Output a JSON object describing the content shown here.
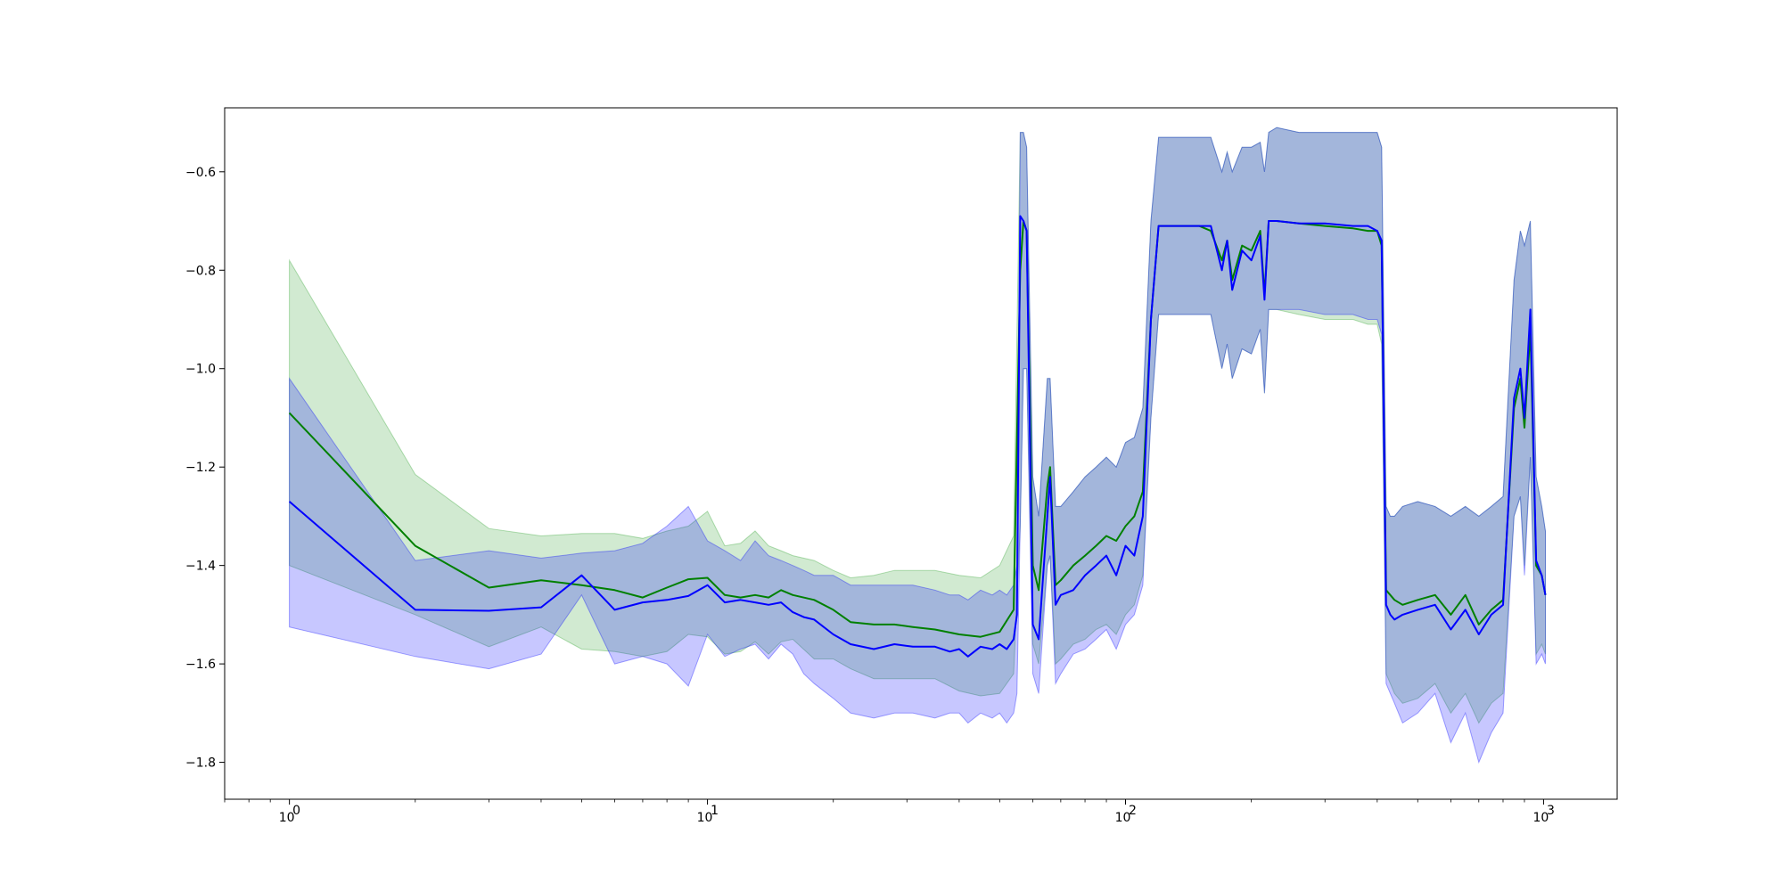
{
  "chart_data": {
    "type": "line",
    "title": "",
    "xlabel": "",
    "ylabel": "",
    "x_scale": "log",
    "xlim": [
      0.7,
      1500
    ],
    "ylim": [
      -1.875,
      -0.47
    ],
    "grid": false,
    "legend": "none",
    "x_ticks": [
      {
        "value": 1,
        "label": "10",
        "exp": "0"
      },
      {
        "value": 10,
        "label": "10",
        "exp": "1"
      },
      {
        "value": 100,
        "label": "10",
        "exp": "2"
      },
      {
        "value": 1000,
        "label": "10",
        "exp": "3"
      }
    ],
    "y_ticks": [
      {
        "value": -1.8,
        "label": "−1.8"
      },
      {
        "value": -1.6,
        "label": "−1.6"
      },
      {
        "value": -1.4,
        "label": "−1.4"
      },
      {
        "value": -1.2,
        "label": "−1.2"
      },
      {
        "value": -1.0,
        "label": "−1.0"
      },
      {
        "value": -0.8,
        "label": "−0.8"
      },
      {
        "value": -0.6,
        "label": "−0.6"
      }
    ],
    "series": [
      {
        "color": "#008000",
        "band_color": "#2ca02c",
        "x": [
          1,
          2,
          3,
          4,
          5,
          6,
          7,
          8,
          9,
          10,
          11,
          12,
          13,
          14,
          15,
          16,
          18,
          20,
          22,
          25,
          28,
          31,
          35,
          40,
          45,
          50,
          54,
          56,
          57,
          58,
          60,
          62,
          65,
          66,
          68,
          70,
          75,
          80,
          85,
          90,
          95,
          100,
          105,
          110,
          115,
          120,
          150,
          160,
          170,
          175,
          180,
          190,
          200,
          210,
          215,
          220,
          230,
          260,
          300,
          350,
          380,
          400,
          410,
          420,
          430,
          440,
          460,
          500,
          550,
          600,
          650,
          700,
          750,
          800,
          850,
          880,
          900,
          930,
          960,
          990,
          1010
        ],
        "y": [
          -1.09,
          -1.36,
          -1.445,
          -1.43,
          -1.44,
          -1.45,
          -1.465,
          -1.445,
          -1.428,
          -1.425,
          -1.46,
          -1.465,
          -1.46,
          -1.465,
          -1.45,
          -1.46,
          -1.47,
          -1.49,
          -1.515,
          -1.52,
          -1.52,
          -1.525,
          -1.53,
          -1.54,
          -1.545,
          -1.535,
          -1.49,
          -0.8,
          -0.7,
          -0.72,
          -1.4,
          -1.45,
          -1.24,
          -1.2,
          -1.44,
          -1.43,
          -1.4,
          -1.38,
          -1.36,
          -1.34,
          -1.35,
          -1.32,
          -1.3,
          -1.25,
          -0.9,
          -0.71,
          -0.71,
          -0.72,
          -0.78,
          -0.74,
          -0.82,
          -0.75,
          -0.76,
          -0.72,
          -0.85,
          -0.7,
          -0.7,
          -0.705,
          -0.71,
          -0.715,
          -0.72,
          -0.72,
          -0.75,
          -1.45,
          -1.46,
          -1.47,
          -1.48,
          -1.47,
          -1.46,
          -1.5,
          -1.46,
          -1.52,
          -1.49,
          -1.47,
          -1.08,
          -1.02,
          -1.12,
          -0.92,
          -1.4,
          -1.42,
          -1.46
        ],
        "upper": [
          -0.78,
          -1.215,
          -1.325,
          -1.34,
          -1.335,
          -1.335,
          -1.345,
          -1.33,
          -1.32,
          -1.29,
          -1.36,
          -1.355,
          -1.33,
          -1.36,
          -1.37,
          -1.38,
          -1.39,
          -1.41,
          -1.425,
          -1.42,
          -1.41,
          -1.41,
          -1.41,
          -1.42,
          -1.425,
          -1.4,
          -1.34,
          -0.52,
          -0.52,
          -0.55,
          -1.22,
          -1.3,
          -1.02,
          -1.02,
          -1.28,
          -1.28,
          -1.25,
          -1.22,
          -1.2,
          -1.18,
          -1.2,
          -1.15,
          -1.14,
          -1.08,
          -0.7,
          -0.53,
          -0.53,
          -0.53,
          -0.6,
          -0.56,
          -0.6,
          -0.55,
          -0.55,
          -0.54,
          -0.6,
          -0.52,
          -0.51,
          -0.52,
          -0.52,
          -0.52,
          -0.52,
          -0.52,
          -0.55,
          -1.28,
          -1.3,
          -1.3,
          -1.28,
          -1.27,
          -1.28,
          -1.3,
          -1.28,
          -1.3,
          -1.28,
          -1.26,
          -0.82,
          -0.72,
          -0.75,
          -0.7,
          -1.22,
          -1.28,
          -1.33
        ],
        "lower": [
          -1.4,
          -1.5,
          -1.565,
          -1.525,
          -1.57,
          -1.575,
          -1.585,
          -1.575,
          -1.54,
          -1.545,
          -1.58,
          -1.575,
          -1.555,
          -1.58,
          -1.555,
          -1.55,
          -1.59,
          -1.59,
          -1.61,
          -1.63,
          -1.63,
          -1.63,
          -1.63,
          -1.655,
          -1.665,
          -1.66,
          -1.62,
          -1.32,
          -1.0,
          -1.0,
          -1.56,
          -1.6,
          -1.4,
          -1.38,
          -1.6,
          -1.59,
          -1.56,
          -1.55,
          -1.53,
          -1.52,
          -1.54,
          -1.5,
          -1.48,
          -1.42,
          -1.1,
          -0.89,
          -0.89,
          -0.89,
          -1.0,
          -0.95,
          -1.02,
          -0.96,
          -0.97,
          -0.92,
          -1.05,
          -0.88,
          -0.88,
          -0.89,
          -0.9,
          -0.9,
          -0.91,
          -0.91,
          -0.95,
          -1.62,
          -1.64,
          -1.66,
          -1.68,
          -1.67,
          -1.64,
          -1.7,
          -1.66,
          -1.72,
          -1.68,
          -1.66,
          -1.3,
          -1.26,
          -1.4,
          -1.18,
          -1.58,
          -1.56,
          -1.58
        ]
      },
      {
        "color": "#0000ff",
        "band_color": "#0000ff",
        "x": [
          1,
          2,
          3,
          4,
          5,
          6,
          7,
          8,
          9,
          10,
          11,
          12,
          13,
          14,
          15,
          16,
          17,
          18,
          20,
          22,
          25,
          28,
          31,
          35,
          38,
          40,
          42,
          45,
          48,
          50,
          52,
          54,
          55,
          56,
          57,
          58,
          60,
          62,
          65,
          66,
          68,
          70,
          75,
          80,
          85,
          90,
          95,
          100,
          105,
          110,
          115,
          120,
          150,
          160,
          170,
          175,
          180,
          190,
          200,
          210,
          215,
          220,
          230,
          260,
          300,
          350,
          380,
          400,
          410,
          420,
          430,
          440,
          460,
          500,
          550,
          600,
          650,
          700,
          750,
          800,
          850,
          880,
          900,
          930,
          960,
          990,
          1010
        ],
        "y": [
          -1.27,
          -1.49,
          -1.492,
          -1.485,
          -1.42,
          -1.49,
          -1.475,
          -1.47,
          -1.462,
          -1.44,
          -1.475,
          -1.47,
          -1.475,
          -1.48,
          -1.475,
          -1.495,
          -1.505,
          -1.51,
          -1.54,
          -1.56,
          -1.57,
          -1.56,
          -1.565,
          -1.565,
          -1.575,
          -1.57,
          -1.585,
          -1.565,
          -1.57,
          -1.56,
          -1.57,
          -1.55,
          -1.5,
          -0.69,
          -0.7,
          -0.72,
          -1.52,
          -1.55,
          -1.3,
          -1.22,
          -1.48,
          -1.46,
          -1.45,
          -1.42,
          -1.4,
          -1.38,
          -1.42,
          -1.36,
          -1.38,
          -1.3,
          -0.9,
          -0.71,
          -0.71,
          -0.71,
          -0.8,
          -0.74,
          -0.84,
          -0.76,
          -0.78,
          -0.73,
          -0.86,
          -0.7,
          -0.7,
          -0.705,
          -0.705,
          -0.71,
          -0.71,
          -0.72,
          -0.74,
          -1.48,
          -1.5,
          -1.51,
          -1.5,
          -1.49,
          -1.48,
          -1.53,
          -1.49,
          -1.54,
          -1.5,
          -1.48,
          -1.06,
          -1.0,
          -1.1,
          -0.88,
          -1.39,
          -1.42,
          -1.46
        ],
        "upper": [
          -1.02,
          -1.39,
          -1.37,
          -1.385,
          -1.375,
          -1.37,
          -1.355,
          -1.32,
          -1.28,
          -1.35,
          -1.37,
          -1.39,
          -1.35,
          -1.38,
          -1.39,
          -1.4,
          -1.41,
          -1.42,
          -1.42,
          -1.44,
          -1.44,
          -1.44,
          -1.44,
          -1.45,
          -1.46,
          -1.46,
          -1.47,
          -1.45,
          -1.46,
          -1.45,
          -1.46,
          -1.44,
          -1.4,
          -0.52,
          -0.52,
          -0.55,
          -1.22,
          -1.3,
          -1.02,
          -1.02,
          -1.28,
          -1.28,
          -1.25,
          -1.22,
          -1.2,
          -1.18,
          -1.2,
          -1.15,
          -1.14,
          -1.08,
          -0.7,
          -0.53,
          -0.53,
          -0.53,
          -0.6,
          -0.56,
          -0.6,
          -0.55,
          -0.55,
          -0.54,
          -0.6,
          -0.52,
          -0.51,
          -0.52,
          -0.52,
          -0.52,
          -0.52,
          -0.52,
          -0.55,
          -1.28,
          -1.3,
          -1.3,
          -1.28,
          -1.27,
          -1.28,
          -1.3,
          -1.28,
          -1.3,
          -1.28,
          -1.26,
          -0.82,
          -0.72,
          -0.75,
          -0.7,
          -1.22,
          -1.28,
          -1.33
        ],
        "lower": [
          -1.525,
          -1.585,
          -1.61,
          -1.58,
          -1.46,
          -1.6,
          -1.585,
          -1.6,
          -1.645,
          -1.54,
          -1.585,
          -1.57,
          -1.56,
          -1.59,
          -1.56,
          -1.58,
          -1.62,
          -1.64,
          -1.67,
          -1.7,
          -1.71,
          -1.7,
          -1.7,
          -1.71,
          -1.7,
          -1.7,
          -1.72,
          -1.7,
          -1.71,
          -1.7,
          -1.72,
          -1.7,
          -1.66,
          -1.32,
          -1.0,
          -1.0,
          -1.62,
          -1.66,
          -1.4,
          -1.38,
          -1.64,
          -1.62,
          -1.58,
          -1.57,
          -1.55,
          -1.53,
          -1.57,
          -1.52,
          -1.5,
          -1.44,
          -1.1,
          -0.89,
          -0.89,
          -0.89,
          -1.0,
          -0.95,
          -1.02,
          -0.96,
          -0.97,
          -0.92,
          -1.05,
          -0.88,
          -0.88,
          -0.88,
          -0.89,
          -0.89,
          -0.9,
          -0.9,
          -0.93,
          -1.64,
          -1.66,
          -1.68,
          -1.72,
          -1.7,
          -1.66,
          -1.76,
          -1.7,
          -1.8,
          -1.74,
          -1.7,
          -1.3,
          -1.26,
          -1.42,
          -1.18,
          -1.6,
          -1.58,
          -1.6
        ]
      }
    ]
  }
}
